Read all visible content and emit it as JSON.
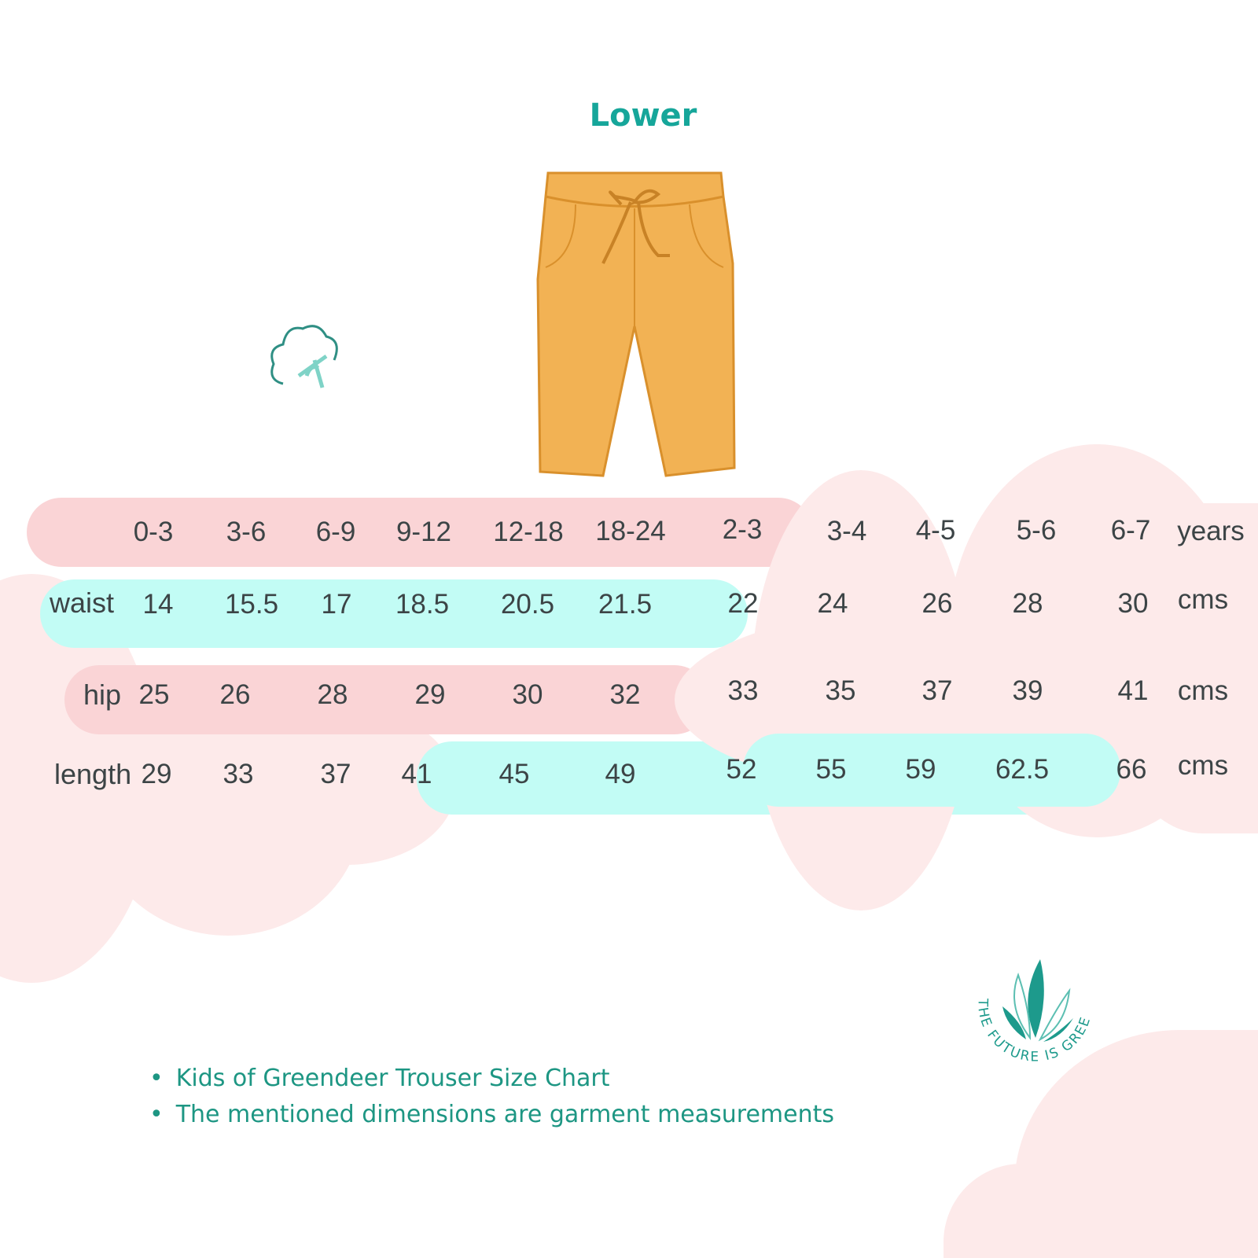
{
  "title": "Lower",
  "header_row": {
    "ages": [
      "0-3",
      "3-6",
      "6-9",
      "9-12",
      "12-18",
      "18-24",
      "2-3",
      "3-4",
      "4-5",
      "5-6",
      "6-7"
    ],
    "unit": "years"
  },
  "rows": [
    {
      "label": "waist",
      "values": [
        "14",
        "15.5",
        "17",
        "18.5",
        "20.5",
        "21.5",
        "22",
        "24",
        "26",
        "28",
        "30"
      ],
      "unit": "cms"
    },
    {
      "label": "hip",
      "values": [
        "25",
        "26",
        "28",
        "29",
        "30",
        "32",
        "33",
        "35",
        "37",
        "39",
        "41"
      ],
      "unit": "cms"
    },
    {
      "label": "length",
      "values": [
        "29",
        "33",
        "37",
        "41",
        "45",
        "49",
        "52",
        "55",
        "59",
        "62.5",
        "66"
      ],
      "unit": "cms"
    }
  ],
  "notes": [
    "Kids of Greendeer Trouser  Size Chart",
    "The mentioned dimensions are garment measurements"
  ],
  "logo_text": "THE FUTURE IS GREEN",
  "colors": {
    "accent": "#16a69a",
    "pink_bar": "#fad4d6",
    "cyan_bar": "#c2fcf5",
    "cloud": "#fdeaea",
    "trouser": "#f2b254"
  }
}
